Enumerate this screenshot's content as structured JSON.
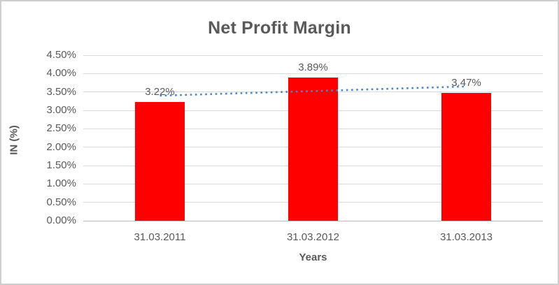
{
  "window": {
    "background_color": "#ffffff",
    "border_color": "#cfcfcf"
  },
  "chart_data": {
    "type": "bar",
    "title": "Net Profit Margin",
    "xlabel": "Years",
    "ylabel": "IN (%)",
    "categories": [
      "31.03.2011",
      "31.03.2012",
      "31.03.2013"
    ],
    "values": [
      3.22,
      3.89,
      3.47
    ],
    "data_labels": [
      "3.22%",
      "3.89%",
      "3.47%"
    ],
    "ylim": [
      0,
      4.5
    ],
    "y_tick_step": 0.5,
    "y_tick_labels": [
      "0.00%",
      "0.50%",
      "1.00%",
      "1.50%",
      "2.00%",
      "2.50%",
      "3.00%",
      "3.50%",
      "4.00%",
      "4.50%"
    ],
    "grid": true,
    "legend": "none",
    "bar_color": "#ff0000",
    "text_color": "#595959",
    "gridline_color": "#d9d9d9",
    "axis_line_color": "#bfbfbf",
    "trendline": {
      "type": "linear",
      "style": "dotted",
      "color": "#4a86c8",
      "start_value": 3.4,
      "end_value": 3.65
    }
  }
}
